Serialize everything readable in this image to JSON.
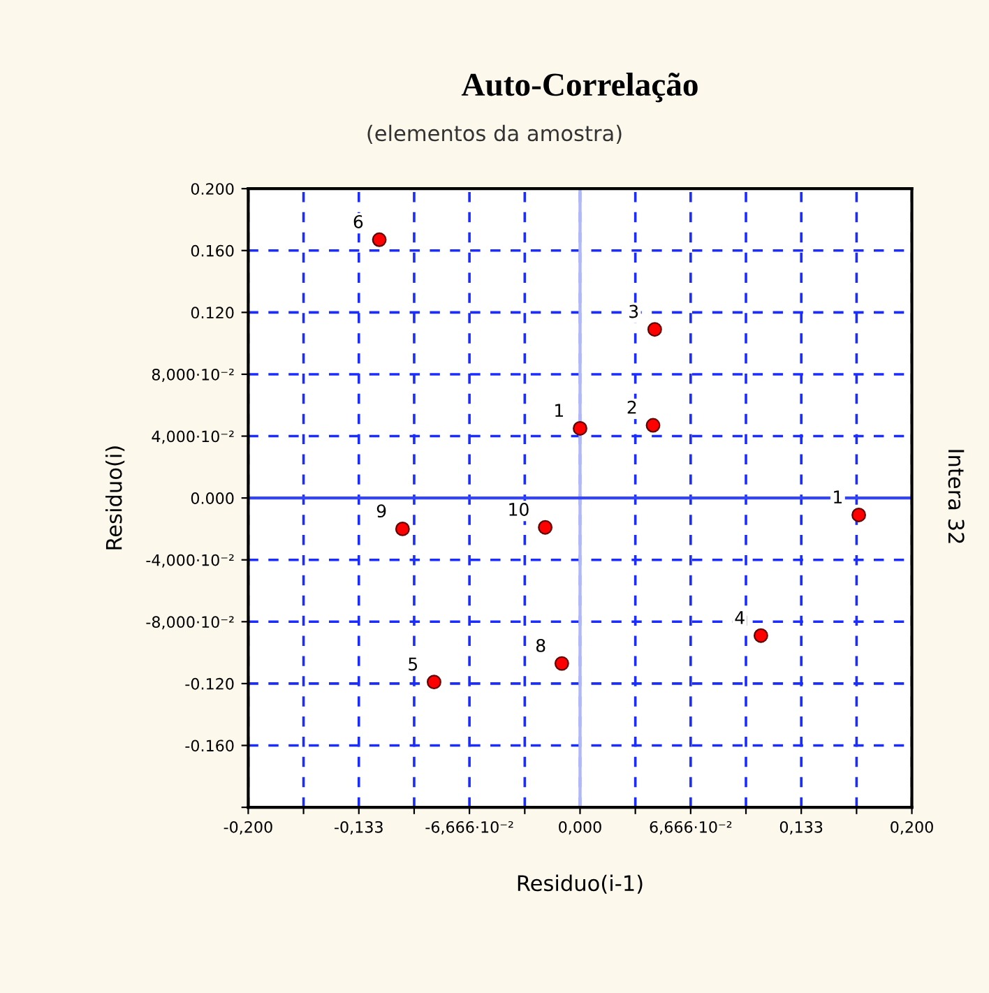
{
  "chart_data": {
    "type": "scatter",
    "title": "Auto-Correlação",
    "subtitle": "(elementos da amostra)",
    "xlabel": "Residuo(i-1)",
    "ylabel": "Residuo(i)",
    "x": [
      -0.121,
      0.045,
      0.0,
      0.044,
      0.168,
      -0.107,
      -0.021,
      0.109,
      -0.011,
      -0.088
    ],
    "series": [
      {
        "color": "#ff0000",
        "values": [
          0.167,
          0.109,
          0.045,
          0.047,
          -0.011,
          -0.02,
          -0.019,
          -0.089,
          -0.107,
          -0.119
        ]
      }
    ],
    "marker": "circle",
    "xlim": [
      -0.2,
      0.2
    ],
    "ylim": [
      -0.2,
      0.2
    ],
    "xticks": [
      {
        "value": -0.2,
        "label": "-0,200"
      },
      {
        "value": -0.16667,
        "label": null
      },
      {
        "value": -0.13333,
        "label": "-0,133"
      },
      {
        "value": -0.1,
        "label": null
      },
      {
        "value": -0.06667,
        "label": "-6,666·10⁻²"
      },
      {
        "value": -0.03333,
        "label": null
      },
      {
        "value": 0.0,
        "label": "0,000"
      },
      {
        "value": 0.03333,
        "label": null
      },
      {
        "value": 0.06667,
        "label": "6,666·10⁻²"
      },
      {
        "value": 0.1,
        "label": null
      },
      {
        "value": 0.13333,
        "label": "0,133"
      },
      {
        "value": 0.16667,
        "label": null
      },
      {
        "value": 0.2,
        "label": "0,200"
      }
    ],
    "yticks": [
      {
        "value": -0.2,
        "label": null
      },
      {
        "value": -0.16,
        "label": "-0.160"
      },
      {
        "value": -0.12,
        "label": "-0.120"
      },
      {
        "value": -0.08,
        "label": "-8,000·10⁻²"
      },
      {
        "value": -0.04,
        "label": "-4,000·10⁻²"
      },
      {
        "value": 0.0,
        "label": "0.000"
      },
      {
        "value": 0.04,
        "label": "4,000·10⁻²"
      },
      {
        "value": 0.08,
        "label": "8,000·10⁻²"
      },
      {
        "value": 0.12,
        "label": "0.120"
      },
      {
        "value": 0.16,
        "label": "0.160"
      },
      {
        "value": 0.2,
        "label": "0.200"
      }
    ],
    "grid": true,
    "ref_lines": [
      {
        "axis": "x",
        "value": 0.0,
        "color": "#b0b8f8"
      },
      {
        "axis": "y",
        "value": 0.0,
        "color": "#3344ff"
      }
    ],
    "annotations": [
      {
        "text": "6",
        "x": -0.121,
        "y": 0.167
      },
      {
        "text": "3",
        "x": 0.045,
        "y": 0.109
      },
      {
        "text": "1",
        "x": 0.0,
        "y": 0.045
      },
      {
        "text": "2",
        "x": 0.044,
        "y": 0.047
      },
      {
        "text": "1",
        "x": 0.168,
        "y": -0.011
      },
      {
        "text": "9",
        "x": -0.107,
        "y": -0.02
      },
      {
        "text": "10",
        "x": -0.021,
        "y": -0.019
      },
      {
        "text": "4",
        "x": 0.109,
        "y": -0.089
      },
      {
        "text": "8",
        "x": -0.011,
        "y": -0.107
      },
      {
        "text": "5",
        "x": -0.088,
        "y": -0.119
      },
      "Intera 32"
    ]
  }
}
